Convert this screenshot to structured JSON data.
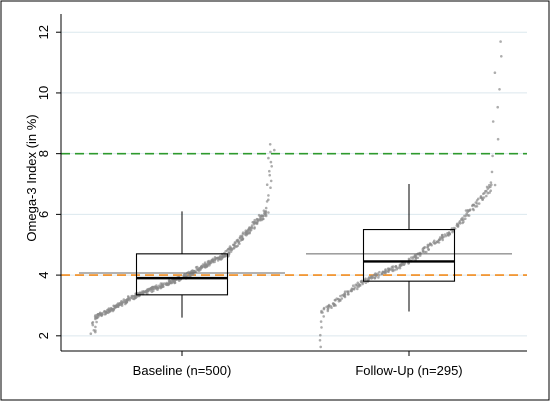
{
  "chart_data": {
    "type": "box",
    "ylabel": "Omega-3 Index (in %)",
    "ylim": [
      1.5,
      12.6
    ],
    "yticks": [
      "2",
      "4",
      "6",
      "8",
      "10",
      "12"
    ],
    "grid": true,
    "categories": [
      "Baseline (n=500)",
      "Follow-Up (n=295)"
    ],
    "boxes": [
      {
        "category": "Baseline (n=500)",
        "whisker_low": 2.6,
        "q1": 3.35,
        "median": 3.9,
        "q3": 4.7,
        "whisker_high": 6.1,
        "mean": 4.07,
        "point_min": 2.05,
        "point_max": 8.3,
        "n": 500
      },
      {
        "category": "Follow-Up (n=295)",
        "whisker_low": 2.8,
        "q1": 3.8,
        "median": 4.45,
        "q3": 5.5,
        "whisker_high": 7.0,
        "mean": 4.7,
        "point_min": 1.65,
        "point_max": 11.7,
        "n": 295
      }
    ],
    "reference_lines": [
      {
        "value": 8,
        "color": "#2e9a2e",
        "style": "dashed"
      },
      {
        "value": 4,
        "color": "#f08a1c",
        "style": "dashed"
      }
    ],
    "colors": {
      "points": "#8a8a8a",
      "grid": "#dce8ee",
      "frame": "#000000"
    }
  }
}
